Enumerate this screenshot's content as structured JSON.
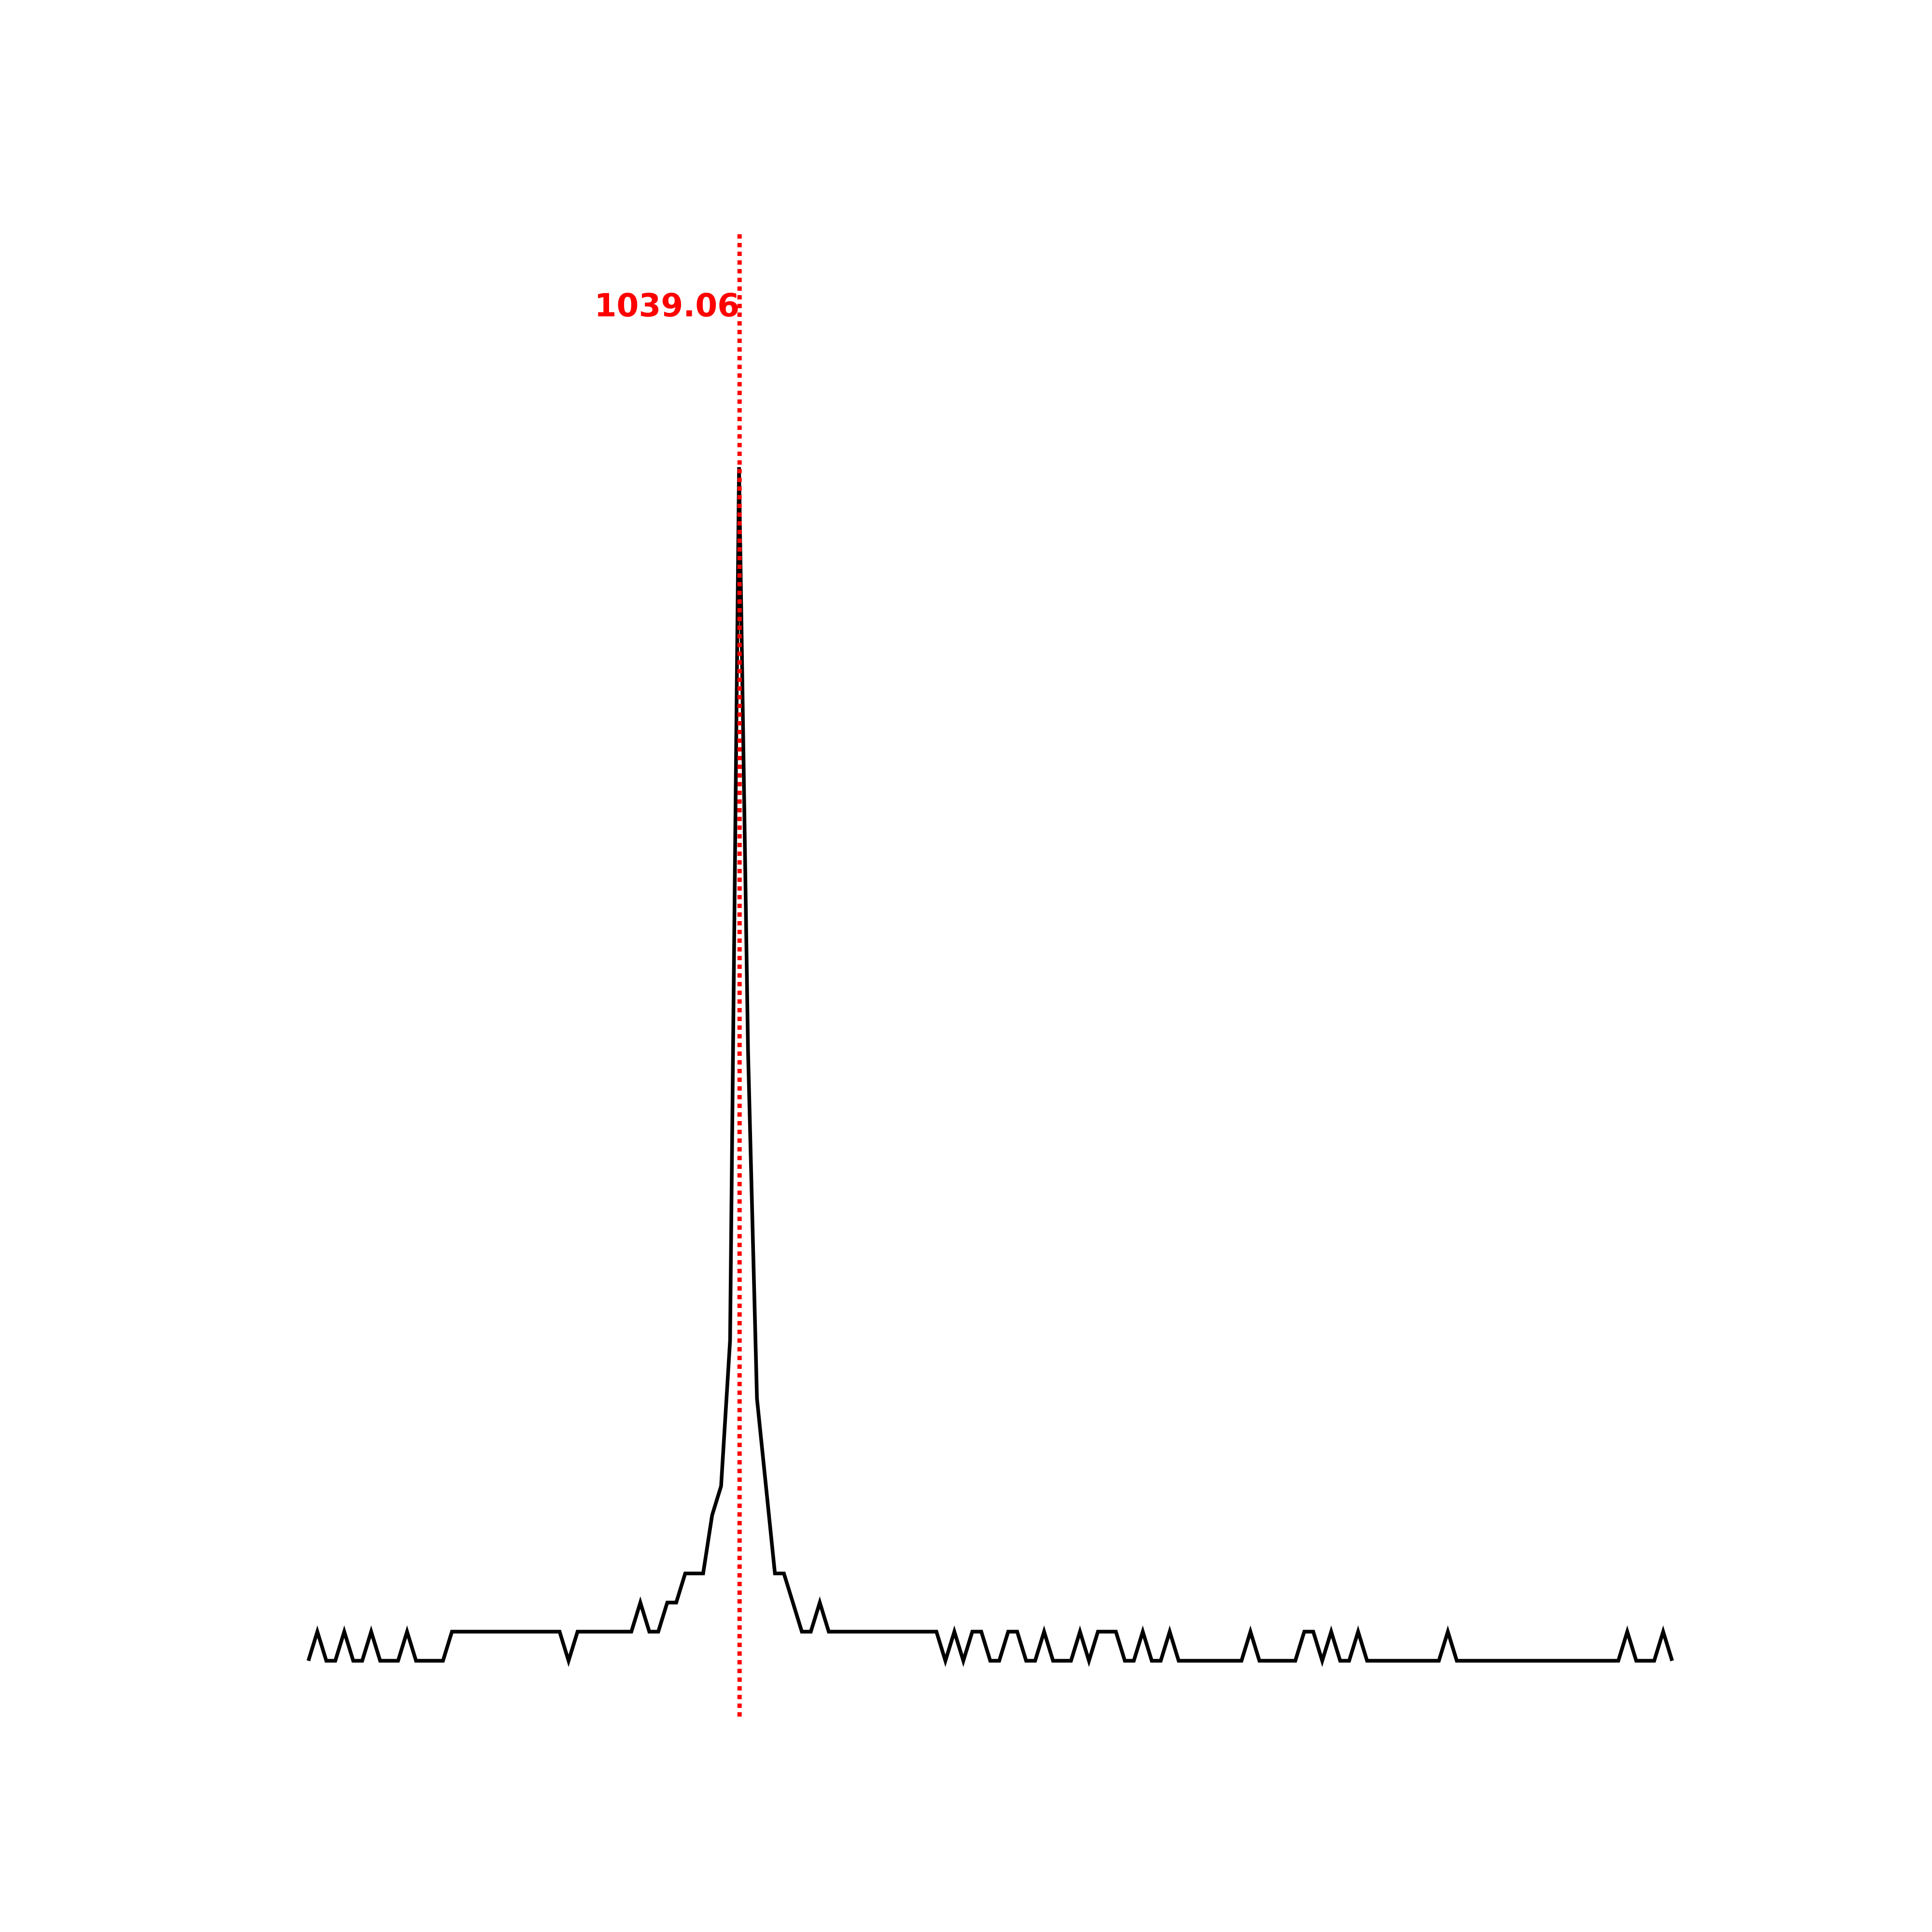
{
  "chart_data": {
    "type": "line",
    "x": [
      991,
      992,
      993,
      994,
      995,
      996,
      997,
      998,
      999,
      1000,
      1001,
      1002,
      1003,
      1004,
      1005,
      1006,
      1007,
      1008,
      1009,
      1010,
      1011,
      1012,
      1013,
      1014,
      1015,
      1016,
      1017,
      1018,
      1019,
      1020,
      1021,
      1022,
      1023,
      1024,
      1025,
      1026,
      1027,
      1028,
      1029,
      1030,
      1031,
      1032,
      1033,
      1034,
      1035,
      1036,
      1037,
      1038,
      1039,
      1040,
      1041,
      1042,
      1043,
      1044,
      1045,
      1046,
      1047,
      1048,
      1049,
      1050,
      1051,
      1052,
      1053,
      1054,
      1055,
      1056,
      1057,
      1058,
      1059,
      1060,
      1061,
      1062,
      1063,
      1064,
      1065,
      1066,
      1067,
      1068,
      1069,
      1070,
      1071,
      1072,
      1073,
      1074,
      1075,
      1076,
      1077,
      1078,
      1079,
      1080,
      1081,
      1082,
      1083,
      1084,
      1085,
      1086,
      1087,
      1088,
      1089,
      1090,
      1091,
      1092,
      1093,
      1094,
      1095,
      1096,
      1097,
      1098,
      1099,
      1100,
      1101,
      1102,
      1103,
      1104,
      1105,
      1106,
      1107,
      1108,
      1109,
      1110,
      1111,
      1112,
      1113,
      1114,
      1115,
      1116,
      1117,
      1118,
      1119,
      1120,
      1121,
      1122,
      1123,
      1124,
      1125,
      1126,
      1127,
      1128,
      1129,
      1130,
      1131,
      1132,
      1133,
      1134,
      1135,
      1136,
      1137,
      1138,
      1139,
      1140,
      1141,
      1142,
      1143
    ],
    "series": [
      {
        "color": "#000000",
        "values": [
          0,
          1,
          0,
          0,
          1,
          0,
          0,
          1,
          0,
          0,
          0,
          1,
          0,
          0,
          0,
          0,
          1,
          1,
          1,
          1,
          1,
          1,
          1,
          1,
          1,
          1,
          1,
          1,
          1,
          0,
          1,
          1,
          1,
          1,
          1,
          1,
          1,
          2,
          1,
          1,
          2,
          2,
          3,
          3,
          3,
          5,
          6,
          11,
          41,
          21,
          9,
          6,
          3,
          3,
          2,
          1,
          1,
          2,
          1,
          1,
          1,
          1,
          1,
          1,
          1,
          1,
          1,
          1,
          1,
          1,
          1,
          0,
          1,
          0,
          1,
          1,
          0,
          0,
          1,
          1,
          0,
          0,
          1,
          0,
          0,
          0,
          1,
          0,
          1,
          1,
          1,
          0,
          0,
          1,
          0,
          0,
          1,
          0,
          0,
          0,
          0,
          0,
          0,
          0,
          0,
          1,
          0,
          0,
          0,
          0,
          0,
          1,
          1,
          0,
          1,
          0,
          0,
          1,
          0,
          0,
          0,
          0,
          0,
          0,
          0,
          0,
          0,
          1,
          0,
          0,
          0,
          0,
          0,
          0,
          0,
          0,
          0,
          0,
          0,
          0,
          0,
          0,
          0,
          0,
          0,
          0,
          0,
          1,
          0,
          0,
          0,
          1,
          0
        ]
      }
    ],
    "xlim": [
      985,
      1150
    ],
    "ylim": [
      -2,
      49
    ],
    "vline": {
      "x": 1039.06,
      "color": "#ff0000"
    }
  }
}
